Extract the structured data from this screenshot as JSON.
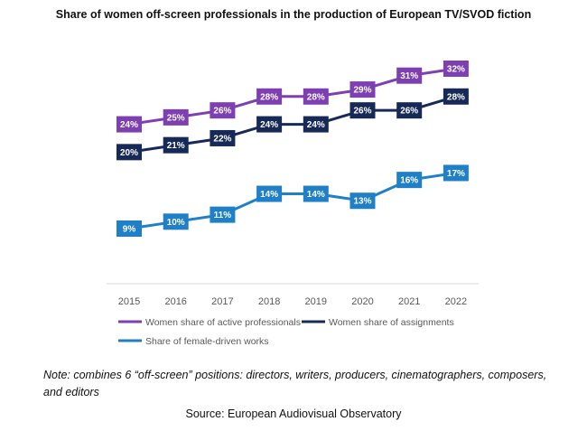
{
  "chart_data": {
    "type": "line",
    "title": "Share of women off-screen professionals in the production of European TV/SVOD fiction",
    "categories": [
      "2015",
      "2016",
      "2017",
      "2018",
      "2019",
      "2020",
      "2021",
      "2022"
    ],
    "series": [
      {
        "name": "Women share of active professionals",
        "color": "#7d3fb2",
        "values": [
          24,
          25,
          26,
          28,
          28,
          29,
          31,
          32
        ],
        "labels": [
          "24%",
          "25%",
          "26%",
          "28%",
          "28%",
          "29%",
          "31%",
          "32%"
        ]
      },
      {
        "name": "Women share of assignments",
        "color": "#172a57",
        "values": [
          20,
          21,
          22,
          24,
          24,
          26,
          26,
          28
        ],
        "labels": [
          "20%",
          "21%",
          "22%",
          "24%",
          "24%",
          "26%",
          "26%",
          "28%"
        ]
      },
      {
        "name": "Share of female-driven works",
        "color": "#1f80c8",
        "values": [
          9,
          10,
          11,
          14,
          14,
          13,
          16,
          17
        ],
        "labels": [
          "9%",
          "10%",
          "11%",
          "14%",
          "14%",
          "13%",
          "16%",
          "17%"
        ]
      }
    ],
    "legend_position": "bottom",
    "grid": false
  },
  "note": "Note: combines 6 “off-screen” positions: directors, writers, producers, cinematographers, composers, and editors",
  "source": "Source: European Audiovisual Observatory"
}
